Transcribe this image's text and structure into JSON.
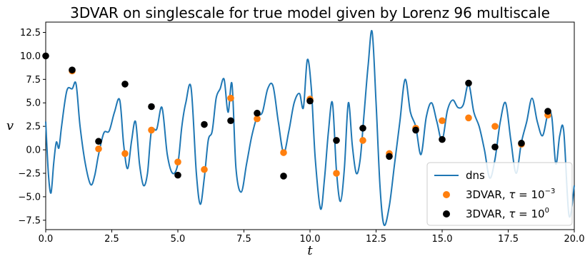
{
  "chart_data": {
    "type": "line",
    "title": "3DVAR on singlescale for true model given by Lorenz 96 multiscale",
    "xlabel": "t",
    "ylabel": "v",
    "xlim": [
      0,
      20
    ],
    "ylim": [
      -8.5,
      13.6
    ],
    "xticks": [
      0,
      2.5,
      5,
      7.5,
      10,
      12.5,
      15,
      17.5,
      20
    ],
    "xtick_labels": [
      "0.0",
      "2.5",
      "5.0",
      "7.5",
      "10.0",
      "12.5",
      "15.0",
      "17.5",
      "20.0"
    ],
    "yticks": [
      -7.5,
      -5,
      -2.5,
      0,
      2.5,
      5,
      7.5,
      10,
      12.5
    ],
    "ytick_labels": [
      "−7.5",
      "−5.0",
      "−2.5",
      "0.0",
      "2.5",
      "5.0",
      "7.5",
      "10.0",
      "12.5"
    ],
    "grid": false,
    "legend_position": "lower-right",
    "colors": {
      "dns": "#1f77b4",
      "tau_small": "#ff7f0e",
      "tau_one": "#000000"
    },
    "series": [
      {
        "name": "dns",
        "kind": "line",
        "x": [
          0,
          0.1,
          0.2,
          0.3,
          0.4,
          0.5,
          0.6,
          0.8,
          1.0,
          1.15,
          1.3,
          1.5,
          1.7,
          1.85,
          2.0,
          2.2,
          2.4,
          2.6,
          2.8,
          2.95,
          3.1,
          3.25,
          3.4,
          3.55,
          3.7,
          3.85,
          4.0,
          4.2,
          4.4,
          4.6,
          4.8,
          5.0,
          5.15,
          5.3,
          5.5,
          5.7,
          5.85,
          6.0,
          6.15,
          6.3,
          6.45,
          6.6,
          6.75,
          6.9,
          7.05,
          7.2,
          7.4,
          7.6,
          7.8,
          8.0,
          8.2,
          8.4,
          8.6,
          8.8,
          9.0,
          9.2,
          9.4,
          9.6,
          9.75,
          9.9,
          10.05,
          10.2,
          10.4,
          10.55,
          10.7,
          10.85,
          11.0,
          11.15,
          11.3,
          11.45,
          11.6,
          11.75,
          11.9,
          12.05,
          12.2,
          12.35,
          12.5,
          12.65,
          12.8,
          13.0,
          13.2,
          13.4,
          13.6,
          13.8,
          14.0,
          14.2,
          14.4,
          14.6,
          14.8,
          15.0,
          15.2,
          15.4,
          15.6,
          15.8,
          16.0,
          16.2,
          16.4,
          16.6,
          16.8,
          17.0,
          17.2,
          17.4,
          17.6,
          17.8,
          18.0,
          18.2,
          18.4,
          18.6,
          18.8,
          19.0,
          19.15,
          19.3,
          19.45,
          19.6,
          19.8,
          20.0
        ],
        "y": [
          3.0,
          -2.5,
          -4.6,
          -1.5,
          0.8,
          0.2,
          2.5,
          6.3,
          6.5,
          7.0,
          2.5,
          -1.5,
          -3.7,
          -2.8,
          -0.5,
          1.8,
          2.0,
          4.0,
          5.3,
          0.5,
          -2.0,
          1.0,
          3.0,
          -1.5,
          -3.8,
          -2.5,
          2.0,
          2.2,
          4.5,
          -0.5,
          -2.5,
          -1.5,
          2.5,
          5.0,
          6.6,
          -2.5,
          -5.8,
          -3.0,
          1.0,
          2.0,
          5.5,
          6.5,
          7.5,
          4.0,
          7.0,
          -2.0,
          -4.5,
          -1.5,
          1.5,
          3.5,
          4.0,
          6.5,
          6.8,
          3.0,
          -0.3,
          2.0,
          5.0,
          6.0,
          4.5,
          9.6,
          6.5,
          -1.0,
          -6.3,
          -3.0,
          2.0,
          5.0,
          -2.2,
          -5.5,
          -2.0,
          5.0,
          0.5,
          -2.5,
          -1.0,
          4.0,
          9.0,
          12.6,
          5.0,
          -4.0,
          -8.0,
          -6.0,
          -1.5,
          3.0,
          7.5,
          4.0,
          2.5,
          -0.5,
          3.5,
          5.0,
          3.0,
          1.0,
          4.2,
          5.3,
          4.5,
          4.8,
          7.0,
          4.0,
          2.5,
          0.0,
          -3.0,
          -1.0,
          3.0,
          5.0,
          1.0,
          -2.5,
          0.8,
          3.0,
          5.5,
          3.0,
          1.5,
          3.8,
          3.5,
          -1.5,
          1.5,
          2.0,
          -7.0,
          -3.8
        ]
      },
      {
        "name": "3DVAR, τ = 10⁻³",
        "kind": "scatter",
        "x": [
          1,
          2,
          3,
          4,
          5,
          6,
          7,
          8,
          9,
          10,
          11,
          12,
          13,
          14,
          15,
          16,
          17,
          18,
          19
        ],
        "y": [
          8.4,
          0.1,
          -0.4,
          2.1,
          -1.3,
          -2.1,
          5.5,
          3.3,
          -0.3,
          5.4,
          -2.5,
          1.0,
          -0.4,
          2.3,
          3.1,
          3.4,
          2.5,
          0.6,
          3.7
        ]
      },
      {
        "name": "3DVAR, τ = 10⁰",
        "kind": "scatter",
        "x": [
          0,
          1,
          2,
          3,
          4,
          5,
          6,
          7,
          8,
          9,
          10,
          11,
          12,
          13,
          14,
          15,
          16,
          17,
          18,
          19
        ],
        "y": [
          10.0,
          8.5,
          0.9,
          7.0,
          4.6,
          -2.7,
          2.7,
          3.1,
          3.9,
          -2.8,
          5.2,
          1.0,
          2.3,
          -0.7,
          2.1,
          1.1,
          7.1,
          0.3,
          0.7,
          4.1
        ]
      }
    ]
  },
  "legend": {
    "dns": "dns",
    "tau_small_prefix": "3DVAR, ",
    "tau_small_tau": "τ",
    "tau_small_eq": " = 10",
    "tau_small_exp": "−3",
    "tau_one_prefix": "3DVAR, ",
    "tau_one_tau": "τ",
    "tau_one_eq": " = 10",
    "tau_one_exp": "0"
  }
}
